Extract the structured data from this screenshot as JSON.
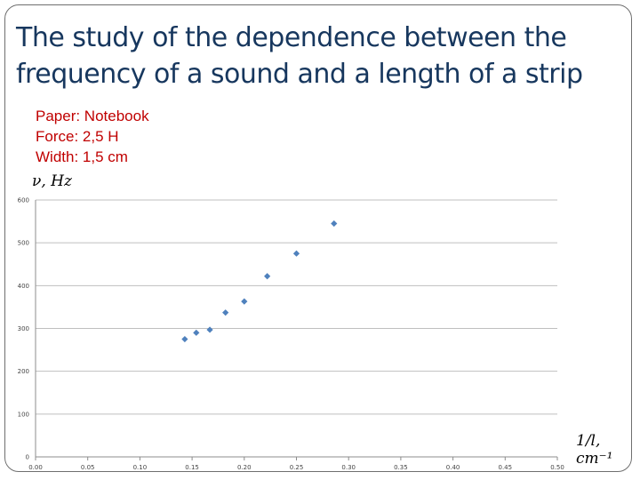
{
  "slide": {
    "title_lines": [
      "The study of the dependence between the",
      "frequency of a sound and a length of a strip"
    ],
    "params": [
      "Paper: Notebook",
      "Force: 2,5 H",
      "Width: 1,5 cm"
    ],
    "accent_color": "#17375e",
    "param_color": "#c00000"
  },
  "chart_data": {
    "type": "scatter",
    "title": "",
    "xlabel": "1/l, cm⁻¹",
    "ylabel": "ν, Hz",
    "xlim": [
      0,
      0.5
    ],
    "ylim": [
      0,
      600
    ],
    "x_ticks": [
      "0.00",
      "0.05",
      "0.10",
      "0.15",
      "0.20",
      "0.25",
      "0.30",
      "0.35",
      "0.40",
      "0.45",
      "0.50"
    ],
    "y_ticks": [
      "0",
      "100",
      "200",
      "300",
      "400",
      "500",
      "600"
    ],
    "grid": "horizontal",
    "marker": "diamond",
    "marker_color": "#4f81bd",
    "points": [
      {
        "x": 0.143,
        "y": 275
      },
      {
        "x": 0.154,
        "y": 290
      },
      {
        "x": 0.167,
        "y": 297
      },
      {
        "x": 0.182,
        "y": 337
      },
      {
        "x": 0.2,
        "y": 363
      },
      {
        "x": 0.222,
        "y": 422
      },
      {
        "x": 0.25,
        "y": 475
      },
      {
        "x": 0.286,
        "y": 545
      }
    ]
  }
}
